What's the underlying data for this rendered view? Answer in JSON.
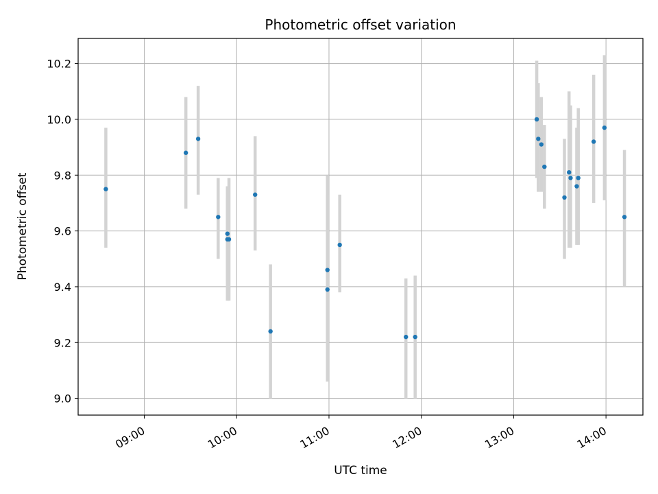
{
  "chart_data": {
    "type": "scatter",
    "title": "Photometric offset variation",
    "xlabel": "UTC time",
    "ylabel": "Photometric offset",
    "xlim": [
      "08:17",
      "14:24"
    ],
    "ylim": [
      8.94,
      10.29
    ],
    "x_ticks": [
      "09:00",
      "10:00",
      "11:00",
      "12:00",
      "13:00",
      "14:00"
    ],
    "y_ticks": [
      9.0,
      9.2,
      9.4,
      9.6,
      9.8,
      10.0,
      10.2
    ],
    "grid": true,
    "marker_color": "#1f77b4",
    "errorbar_color": "#d3d3d3",
    "points": [
      {
        "x": "08:35",
        "y": 9.75,
        "ylow": 9.54,
        "yhigh": 9.97
      },
      {
        "x": "09:27",
        "y": 9.88,
        "ylow": 9.68,
        "yhigh": 10.08
      },
      {
        "x": "09:35",
        "y": 9.93,
        "ylow": 9.73,
        "yhigh": 10.12
      },
      {
        "x": "09:48",
        "y": 9.65,
        "ylow": 9.5,
        "yhigh": 9.79
      },
      {
        "x": "09:54",
        "y": 9.59,
        "ylow": 9.42,
        "yhigh": 9.76
      },
      {
        "x": "09:54",
        "y": 9.57,
        "ylow": 9.35,
        "yhigh": 9.72
      },
      {
        "x": "09:55",
        "y": 9.57,
        "ylow": 9.35,
        "yhigh": 9.79
      },
      {
        "x": "10:12",
        "y": 9.73,
        "ylow": 9.53,
        "yhigh": 9.94
      },
      {
        "x": "10:22",
        "y": 9.24,
        "ylow": 9.0,
        "yhigh": 9.48
      },
      {
        "x": "10:59",
        "y": 9.46,
        "ylow": 9.2,
        "yhigh": 9.8
      },
      {
        "x": "10:59",
        "y": 9.39,
        "ylow": 9.06,
        "yhigh": 9.73
      },
      {
        "x": "11:07",
        "y": 9.55,
        "ylow": 9.38,
        "yhigh": 9.73
      },
      {
        "x": "11:50",
        "y": 9.22,
        "ylow": 9.0,
        "yhigh": 9.43
      },
      {
        "x": "11:56",
        "y": 9.22,
        "ylow": 9.0,
        "yhigh": 9.44
      },
      {
        "x": "13:15",
        "y": 10.0,
        "ylow": 9.79,
        "yhigh": 10.21
      },
      {
        "x": "13:16",
        "y": 9.93,
        "ylow": 9.74,
        "yhigh": 10.13
      },
      {
        "x": "13:18",
        "y": 9.91,
        "ylow": 9.74,
        "yhigh": 10.08
      },
      {
        "x": "13:20",
        "y": 9.83,
        "ylow": 9.68,
        "yhigh": 9.98
      },
      {
        "x": "13:33",
        "y": 9.72,
        "ylow": 9.5,
        "yhigh": 9.93
      },
      {
        "x": "13:36",
        "y": 9.81,
        "ylow": 9.54,
        "yhigh": 10.1
      },
      {
        "x": "13:37",
        "y": 9.79,
        "ylow": 9.54,
        "yhigh": 10.05
      },
      {
        "x": "13:41",
        "y": 9.76,
        "ylow": 9.55,
        "yhigh": 9.97
      },
      {
        "x": "13:42",
        "y": 9.79,
        "ylow": 9.55,
        "yhigh": 10.04
      },
      {
        "x": "13:52",
        "y": 9.92,
        "ylow": 9.7,
        "yhigh": 10.16
      },
      {
        "x": "13:59",
        "y": 9.97,
        "ylow": 9.71,
        "yhigh": 10.23
      },
      {
        "x": "14:12",
        "y": 9.65,
        "ylow": 9.4,
        "yhigh": 9.89
      }
    ]
  }
}
